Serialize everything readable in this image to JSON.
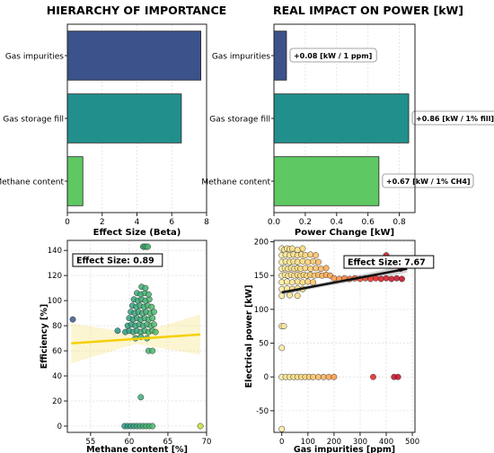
{
  "chart_data": [
    {
      "type": "bar",
      "orientation": "horizontal",
      "title": "HIERARCHY OF IMPORTANCE",
      "xlabel": "Effect Size (Beta)",
      "ylabel": "",
      "categories": [
        "Gas impurities",
        "Gas storage fill",
        "Methane content"
      ],
      "values": [
        7.67,
        6.55,
        0.89
      ],
      "colors": [
        "#3b528b",
        "#21908d",
        "#5ec962"
      ],
      "xlim": [
        0,
        8
      ],
      "xticks": [
        0,
        2,
        4,
        6,
        8
      ],
      "grid": true
    },
    {
      "type": "bar",
      "orientation": "horizontal",
      "title": "REAL IMPACT ON POWER [kW]",
      "xlabel": "Power Change [kW]",
      "ylabel": "",
      "categories": [
        "Gas impurities",
        "Gas storage fill",
        "Methane content"
      ],
      "values": [
        0.08,
        0.86,
        0.67
      ],
      "annotations": [
        "+0.08 [kW / 1 ppm]",
        "+0.86 [kW / 1% fill]",
        "+0.67 [kW / 1% CH4]"
      ],
      "colors": [
        "#3b528b",
        "#21908d",
        "#5ec962"
      ],
      "xlim": [
        0,
        0.9
      ],
      "xticks": [
        0.0,
        0.2,
        0.4,
        0.6,
        0.8
      ],
      "xticklabels": [
        "0.0",
        "0.2",
        "0.4",
        "0.6",
        "0.8"
      ],
      "grid": true
    },
    {
      "type": "scatter",
      "title": "",
      "xlabel": "Methane content [%]",
      "ylabel": "Efficiency [%]",
      "annotation": "Effect Size: 0.89",
      "xlim": [
        52,
        70
      ],
      "ylim": [
        -5,
        148
      ],
      "xticks": [
        55,
        60,
        65,
        70
      ],
      "yticks": [
        0,
        20,
        40,
        60,
        80,
        100,
        120,
        140
      ],
      "trend": {
        "x": [
          52.5,
          69.2
        ],
        "y": [
          66,
          73
        ],
        "color": "#f4d000"
      },
      "points": [
        [
          52.7,
          85
        ],
        [
          61.5,
          23
        ],
        [
          69.2,
          0
        ],
        [
          61.8,
          143
        ],
        [
          62.0,
          143
        ],
        [
          62.2,
          143
        ],
        [
          62.4,
          143
        ],
        [
          59.5,
          75
        ],
        [
          60.0,
          76
        ],
        [
          60.5,
          75
        ],
        [
          61.0,
          76
        ],
        [
          61.5,
          75
        ],
        [
          62.0,
          76
        ],
        [
          62.5,
          75
        ],
        [
          63.0,
          76
        ],
        [
          63.4,
          75
        ],
        [
          58.5,
          76
        ],
        [
          59.8,
          80
        ],
        [
          60.3,
          81
        ],
        [
          60.8,
          80
        ],
        [
          61.3,
          81
        ],
        [
          61.8,
          80
        ],
        [
          62.3,
          81
        ],
        [
          62.8,
          80
        ],
        [
          63.2,
          81
        ],
        [
          60.0,
          86
        ],
        [
          60.5,
          85
        ],
        [
          61.0,
          86
        ],
        [
          61.5,
          85
        ],
        [
          62.0,
          86
        ],
        [
          62.5,
          85
        ],
        [
          63.0,
          86
        ],
        [
          60.2,
          91
        ],
        [
          60.7,
          90
        ],
        [
          61.2,
          91
        ],
        [
          61.7,
          90
        ],
        [
          62.2,
          91
        ],
        [
          62.7,
          90
        ],
        [
          63.2,
          91
        ],
        [
          60.4,
          96
        ],
        [
          60.9,
          95
        ],
        [
          61.4,
          96
        ],
        [
          61.9,
          95
        ],
        [
          62.4,
          96
        ],
        [
          62.9,
          95
        ],
        [
          60.6,
          101
        ],
        [
          61.1,
          100
        ],
        [
          61.6,
          101
        ],
        [
          62.1,
          100
        ],
        [
          62.6,
          101
        ],
        [
          61.0,
          106
        ],
        [
          61.5,
          105
        ],
        [
          62.0,
          106
        ],
        [
          62.5,
          105
        ],
        [
          61.6,
          111
        ],
        [
          62.1,
          110
        ],
        [
          60.8,
          70
        ],
        [
          61.5,
          71
        ],
        [
          62.3,
          70
        ],
        [
          62.5,
          60
        ],
        [
          63.0,
          60
        ],
        [
          59.4,
          0
        ],
        [
          59.8,
          0
        ],
        [
          60.2,
          0
        ],
        [
          60.6,
          0
        ],
        [
          61.0,
          0
        ],
        [
          61.4,
          0
        ],
        [
          61.8,
          0
        ],
        [
          62.2,
          0
        ],
        [
          62.6,
          0
        ],
        [
          63.0,
          0
        ]
      ],
      "grid": true
    },
    {
      "type": "scatter",
      "title": "",
      "xlabel": "Gas impurities [ppm]",
      "ylabel": "Electrical power [kW]",
      "annotation": "Effect Size: 7.67",
      "xlim": [
        -30,
        510
      ],
      "ylim": [
        -82,
        202
      ],
      "xticks": [
        0,
        100,
        200,
        300,
        400,
        500
      ],
      "yticks": [
        -50,
        0,
        50,
        100,
        150,
        200
      ],
      "trend": {
        "x": [
          0,
          480
        ],
        "y": [
          125,
          160
        ],
        "color": "#111111"
      },
      "points": [
        [
          0,
          190
        ],
        [
          10,
          188
        ],
        [
          20,
          190
        ],
        [
          30,
          189
        ],
        [
          40,
          190
        ],
        [
          60,
          188
        ],
        [
          80,
          190
        ],
        [
          0,
          180
        ],
        [
          15,
          181
        ],
        [
          30,
          180
        ],
        [
          45,
          181
        ],
        [
          60,
          180
        ],
        [
          75,
          181
        ],
        [
          90,
          180
        ],
        [
          110,
          181
        ],
        [
          130,
          180
        ],
        [
          0,
          170
        ],
        [
          15,
          171
        ],
        [
          30,
          170
        ],
        [
          45,
          171
        ],
        [
          60,
          170
        ],
        [
          80,
          171
        ],
        [
          100,
          170
        ],
        [
          120,
          171
        ],
        [
          140,
          170
        ],
        [
          0,
          160
        ],
        [
          12,
          161
        ],
        [
          24,
          160
        ],
        [
          36,
          161
        ],
        [
          48,
          160
        ],
        [
          60,
          161
        ],
        [
          72,
          160
        ],
        [
          90,
          161
        ],
        [
          110,
          160
        ],
        [
          130,
          161
        ],
        [
          150,
          160
        ],
        [
          170,
          161
        ],
        [
          0,
          150
        ],
        [
          12,
          151
        ],
        [
          24,
          150
        ],
        [
          36,
          151
        ],
        [
          48,
          150
        ],
        [
          60,
          151
        ],
        [
          72,
          150
        ],
        [
          84,
          151
        ],
        [
          96,
          150
        ],
        [
          110,
          151
        ],
        [
          125,
          150
        ],
        [
          140,
          151
        ],
        [
          155,
          150
        ],
        [
          170,
          151
        ],
        [
          185,
          150
        ],
        [
          200,
          146
        ],
        [
          220,
          145
        ],
        [
          240,
          146
        ],
        [
          260,
          145
        ],
        [
          280,
          146
        ],
        [
          300,
          145
        ],
        [
          320,
          146
        ],
        [
          340,
          145
        ],
        [
          360,
          146
        ],
        [
          380,
          145
        ],
        [
          400,
          146
        ],
        [
          420,
          145
        ],
        [
          440,
          146
        ],
        [
          460,
          145
        ],
        [
          0,
          140
        ],
        [
          20,
          141
        ],
        [
          40,
          140
        ],
        [
          60,
          141
        ],
        [
          80,
          140
        ],
        [
          100,
          141
        ],
        [
          120,
          140
        ],
        [
          0,
          130
        ],
        [
          20,
          131
        ],
        [
          40,
          130
        ],
        [
          60,
          131
        ],
        [
          80,
          130
        ],
        [
          0,
          120
        ],
        [
          30,
          121
        ],
        [
          60,
          120
        ],
        [
          0,
          75
        ],
        [
          8,
          75
        ],
        [
          0,
          43
        ],
        [
          0,
          -77
        ],
        [
          0,
          0
        ],
        [
          15,
          0
        ],
        [
          30,
          0
        ],
        [
          45,
          0
        ],
        [
          60,
          0
        ],
        [
          75,
          0
        ],
        [
          90,
          0
        ],
        [
          105,
          0
        ],
        [
          120,
          0
        ],
        [
          140,
          0
        ],
        [
          160,
          0
        ],
        [
          180,
          0
        ],
        [
          200,
          0
        ],
        [
          350,
          0
        ],
        [
          430,
          0
        ],
        [
          445,
          0
        ],
        [
          400,
          180
        ],
        [
          455,
          160
        ]
      ],
      "grid": true
    }
  ]
}
